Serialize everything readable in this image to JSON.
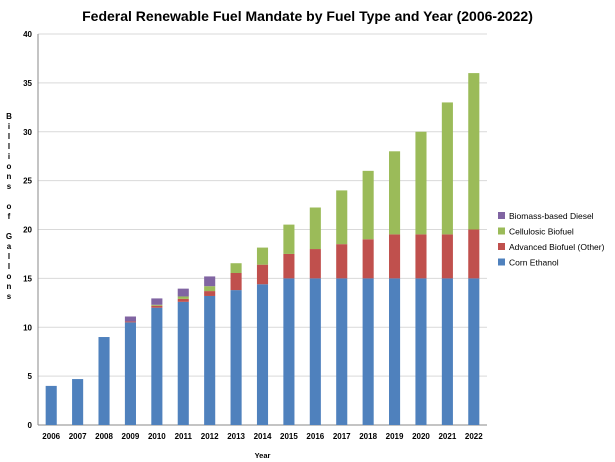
{
  "chart_data": {
    "type": "bar",
    "stacked": true,
    "title": "Federal Renewable Fuel Mandate by Fuel Type and Year (2006-2022)",
    "xlabel": "Year",
    "ylabel": "Billions of Gallons",
    "ylim": [
      0,
      40
    ],
    "yticks": [
      0,
      5,
      10,
      15,
      20,
      25,
      30,
      35,
      40
    ],
    "grid": true,
    "legend_position": "right",
    "categories": [
      "2006",
      "2007",
      "2008",
      "2009",
      "2010",
      "2011",
      "2012",
      "2013",
      "2014",
      "2015",
      "2016",
      "2017",
      "2018",
      "2019",
      "2020",
      "2021",
      "2022"
    ],
    "series": [
      {
        "name": "Corn Ethanol",
        "color": "#4f81bd",
        "values": [
          4.0,
          4.7,
          9.0,
          10.5,
          12.0,
          12.6,
          13.2,
          13.8,
          14.4,
          15.0,
          15.0,
          15.0,
          15.0,
          15.0,
          15.0,
          15.0,
          15.0
        ]
      },
      {
        "name": "Advanced Biofuel (Other)",
        "color": "#c0504d",
        "values": [
          0,
          0,
          0,
          0.1,
          0.2,
          0.3,
          0.5,
          1.75,
          2.0,
          2.5,
          3.0,
          3.5,
          4.0,
          4.5,
          4.5,
          4.5,
          5.0
        ]
      },
      {
        "name": "Cellulosic Biofuel",
        "color": "#9bbb59",
        "values": [
          0,
          0,
          0,
          0,
          0.1,
          0.25,
          0.5,
          1.0,
          1.75,
          3.0,
          4.25,
          5.5,
          7.0,
          8.5,
          10.5,
          13.5,
          16.0
        ]
      },
      {
        "name": "Biomass-based Diesel",
        "color": "#8064a2",
        "values": [
          0,
          0,
          0,
          0.5,
          0.65,
          0.8,
          1.0,
          0,
          0,
          0,
          0,
          0,
          0,
          0,
          0,
          0,
          0
        ]
      }
    ],
    "legend_order": [
      "Biomass-based Diesel",
      "Cellulosic Biofuel",
      "Advanced Biofuel (Other)",
      "Corn Ethanol"
    ]
  }
}
